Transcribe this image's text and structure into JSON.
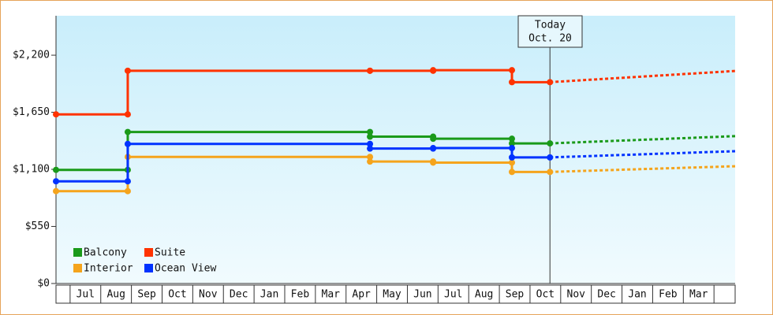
{
  "chart_data": {
    "type": "step",
    "categories": [
      "Jul",
      "Aug",
      "Sep",
      "Oct",
      "Nov",
      "Dec",
      "Jan",
      "Feb",
      "Mar",
      "Apr",
      "May",
      "Jun",
      "Jul",
      "Aug",
      "Sep",
      "Oct",
      "Nov",
      "Dec",
      "Jan",
      "Feb",
      "Mar"
    ],
    "x": [
      -0.46,
      1.88,
      9.78,
      11.84,
      14.41,
      15.65
    ],
    "forecast_x": [
      15.65,
      21.69
    ],
    "xlim": [
      -0.46,
      21.69
    ],
    "ylim": [
      0,
      2580
    ],
    "yticks": [
      {
        "value": 0,
        "label": "$0"
      },
      {
        "value": 550,
        "label": "$550"
      },
      {
        "value": 1100,
        "label": "$1,100"
      },
      {
        "value": 1650,
        "label": "$1,650"
      },
      {
        "value": 2200,
        "label": "$2,200"
      }
    ],
    "today": {
      "x": 15.65,
      "label": [
        "Today",
        "Oct. 20"
      ]
    },
    "series": [
      {
        "name": "Balcony",
        "color": "#1a9a1a",
        "values": [
          1095,
          1460,
          1415,
          1395,
          1350,
          1350
        ],
        "forecast_values": [
          1350,
          1420
        ]
      },
      {
        "name": "Suite",
        "color": "#ff3300",
        "values": [
          1630,
          2050,
          2050,
          2055,
          1940,
          1940
        ],
        "forecast_values": [
          1940,
          2048
        ]
      },
      {
        "name": "Interior",
        "color": "#f5a41c",
        "values": [
          890,
          1220,
          1175,
          1165,
          1075,
          1075
        ],
        "forecast_values": [
          1075,
          1130
        ]
      },
      {
        "name": "Ocean View",
        "color": "#0033ff",
        "values": [
          985,
          1345,
          1300,
          1305,
          1215,
          1215
        ],
        "forecast_values": [
          1215,
          1275
        ]
      }
    ]
  }
}
